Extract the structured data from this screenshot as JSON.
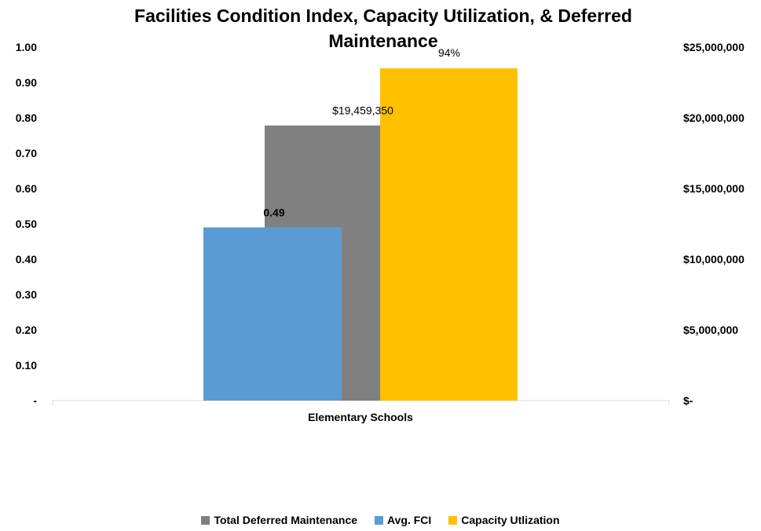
{
  "chart_data": {
    "type": "bar",
    "title": "Facilities Condition Index, Capacity Utilization, & Deferred Maintenance",
    "title_lines": [
      "Facilities Condition Index, Capacity Utilization, & Deferred",
      "Maintenance"
    ],
    "categories": [
      "Elementary Schools"
    ],
    "y_left": {
      "min": 0,
      "max": 1.0,
      "tick_labels": [
        "-",
        "0.10",
        "0.20",
        "0.30",
        "0.40",
        "0.50",
        "0.60",
        "0.70",
        "0.80",
        "0.90",
        "1.00"
      ]
    },
    "y_right": {
      "min": 0,
      "max": 25000000,
      "tick_labels": [
        "$-",
        "$5,000,000",
        "$10,000,000",
        "$15,000,000",
        "$20,000,000",
        "$25,000,000"
      ]
    },
    "series": [
      {
        "name": "Total Deferred Maintenance",
        "axis": "right",
        "values": [
          19459350
        ],
        "label": "$19,459,350",
        "color": "#808080"
      },
      {
        "name": "Avg. FCI",
        "axis": "left",
        "values": [
          0.49
        ],
        "label": "0.49",
        "color": "#5b9bd5"
      },
      {
        "name": "Capacity Utlization",
        "axis": "left",
        "values": [
          0.94
        ],
        "label": "94%",
        "color": "#ffc000"
      }
    ],
    "legend_position": "bottom",
    "grid": false
  }
}
